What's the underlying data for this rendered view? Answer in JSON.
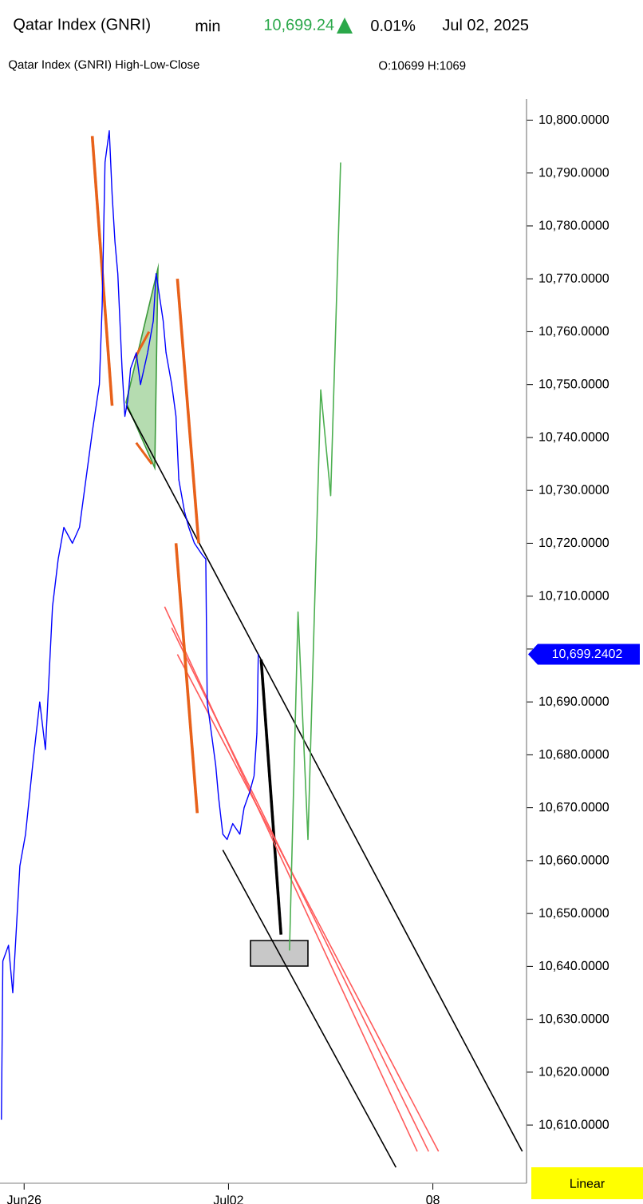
{
  "chart_data": {
    "type": "line",
    "title": "Qatar Index  (GNRI)",
    "annotations": [
      "min",
      "10,699.24",
      "0.01%",
      "Jul 02, 2025",
      "Qatar Index (GNRI)  High-Low-Close",
      "O:10699  H:1069",
      "Linear",
      "10,699.2402"
    ],
    "xlim": [
      "2025-06-25T07:00",
      "2025-07-10T18:00"
    ],
    "xticks": [
      {
        "value": "2025-06-26T00:00",
        "label": "Jun26"
      },
      {
        "value": "2025-07-02T00:00",
        "label": "Jul02"
      },
      {
        "value": "2025-07-08T00:00",
        "label": "08"
      }
    ],
    "ylim": [
      10599,
      10804
    ],
    "yticks": [
      {
        "value": 10610,
        "label": "10,610.0000"
      },
      {
        "value": 10620,
        "label": "10,620.0000"
      },
      {
        "value": 10630,
        "label": "10,630.0000"
      },
      {
        "value": 10640,
        "label": "10,640.0000"
      },
      {
        "value": 10650,
        "label": "10,650.0000"
      },
      {
        "value": 10660,
        "label": "10,660.0000"
      },
      {
        "value": 10670,
        "label": "10,670.0000"
      },
      {
        "value": 10680,
        "label": "10,680.0000"
      },
      {
        "value": 10690,
        "label": "10,690.0000"
      },
      {
        "value": 10700,
        "label": null
      },
      {
        "value": 10710,
        "label": "10,710.0000"
      },
      {
        "value": 10720,
        "label": "10,720.0000"
      },
      {
        "value": 10730,
        "label": "10,730.0000"
      },
      {
        "value": 10740,
        "label": "10,740.0000"
      },
      {
        "value": 10750,
        "label": "10,750.0000"
      },
      {
        "value": 10760,
        "label": "10,760.0000"
      },
      {
        "value": 10770,
        "label": "10,770.0000"
      },
      {
        "value": 10780,
        "label": "10,780.0000"
      },
      {
        "value": 10790,
        "label": "10,790.0000"
      },
      {
        "value": 10800,
        "label": "10,800.0000"
      }
    ],
    "series": [
      {
        "color": "#0000ff",
        "x": [
          "2025-06-25T08:00",
          "2025-06-25T09:00",
          "2025-06-25T13:00",
          "2025-06-25T16:00",
          "2025-06-25T21:00",
          "2025-06-26T01:00",
          "2025-06-26T06:00",
          "2025-06-26T11:00",
          "2025-06-26T15:00",
          "2025-06-26T20:00",
          "2025-06-27T00:00",
          "2025-06-27T04:00",
          "2025-06-27T10:00",
          "2025-06-27T15:00",
          "2025-06-27T21:00",
          "2025-06-28T00:00",
          "2025-06-28T05:00",
          "2025-06-28T07:00",
          "2025-06-28T09:00",
          "2025-06-28T12:00",
          "2025-06-28T14:00",
          "2025-06-28T16:00",
          "2025-06-28T18:00",
          "2025-06-28T21:00",
          "2025-06-28T23:00",
          "2025-06-29T01:00",
          "2025-06-29T03:00",
          "2025-06-29T07:00",
          "2025-06-29T10:00",
          "2025-06-29T15:00",
          "2025-06-29T19:00",
          "2025-06-29T21:00",
          "2025-06-30T02:00",
          "2025-06-30T04:00",
          "2025-06-30T08:00",
          "2025-06-30T11:00",
          "2025-06-30T13:00",
          "2025-06-30T17:00",
          "2025-06-30T20:00",
          "2025-07-01T00:00",
          "2025-07-01T05:00",
          "2025-07-01T08:00",
          "2025-07-01T09:00",
          "2025-07-01T12:00",
          "2025-07-01T15:00",
          "2025-07-01T17:00",
          "2025-07-01T20:00",
          "2025-07-01T23:00",
          "2025-07-02T03:00",
          "2025-07-02T08:00",
          "2025-07-02T11:00",
          "2025-07-02T15:00",
          "2025-07-02T18:00",
          "2025-07-02T20:00",
          "2025-07-02T21:00"
        ],
        "values": [
          10611,
          10641,
          10644,
          10635,
          10659,
          10665,
          10678,
          10690,
          10681,
          10708,
          10717,
          10723,
          10720,
          10723,
          10735,
          10741,
          10750,
          10765,
          10792,
          10798,
          10786,
          10777,
          10771,
          10753,
          10744,
          10747,
          10753,
          10756,
          10750,
          10756,
          10762,
          10771,
          10762,
          10756,
          10750,
          10744,
          10732,
          10726,
          10723,
          10720,
          10718,
          10717,
          10690,
          10684,
          10678,
          10672,
          10665,
          10664,
          10667,
          10665,
          10670,
          10673,
          10676,
          10684,
          10699
        ]
      },
      {
        "color": "#000000",
        "x": [
          "2025-06-29T00:00",
          "2025-07-10T15:00"
        ],
        "values": [
          10746,
          10605
        ]
      },
      {
        "color": "#000000",
        "x": [
          "2025-07-01T20:00",
          "2025-07-06T22:00"
        ],
        "values": [
          10662,
          10602
        ]
      },
      {
        "color": "#000000",
        "x": [
          "2025-07-02T23:00",
          "2025-07-03T13:00"
        ],
        "values": [
          10698,
          10646
        ]
      },
      {
        "color": "#ff5a5a",
        "x": [
          "2025-06-30T03:00",
          "2025-07-07T13:00"
        ],
        "values": [
          10708,
          10605
        ]
      },
      {
        "color": "#ff5a5a",
        "x": [
          "2025-06-30T08:00",
          "2025-07-07T21:00"
        ],
        "values": [
          10704,
          10605
        ]
      },
      {
        "color": "#ff5a5a",
        "x": [
          "2025-06-30T12:00",
          "2025-07-08T04:00"
        ],
        "values": [
          10699,
          10605
        ]
      },
      {
        "color": "#e8611a",
        "x": [
          "2025-06-28T00:00",
          "2025-06-28T14:00"
        ],
        "values": [
          10797,
          10746
        ]
      },
      {
        "color": "#e8611a",
        "x": [
          "2025-06-30T12:00",
          "2025-07-01T03:00"
        ],
        "values": [
          10770,
          10720
        ]
      },
      {
        "color": "#e8611a",
        "x": [
          "2025-06-30T11:00",
          "2025-07-01T02:00"
        ],
        "values": [
          10720,
          10669
        ]
      },
      {
        "color": "#e8611a",
        "x": [
          "2025-06-29T06:00",
          "2025-06-29T16:00"
        ],
        "values": [
          10755,
          10760
        ]
      },
      {
        "color": "#e8611a",
        "x": [
          "2025-06-29T07:00",
          "2025-06-29T18:00"
        ],
        "values": [
          10739,
          10735
        ]
      },
      {
        "color": "#4caf50",
        "x": [
          "2025-07-03T19:00",
          "2025-07-04T01:00",
          "2025-07-04T08:00",
          "2025-07-04T17:00",
          "2025-07-05T00:00",
          "2025-07-05T07:00"
        ],
        "values": [
          10643,
          10707,
          10664,
          10749,
          10729,
          10792
        ]
      }
    ]
  }
}
